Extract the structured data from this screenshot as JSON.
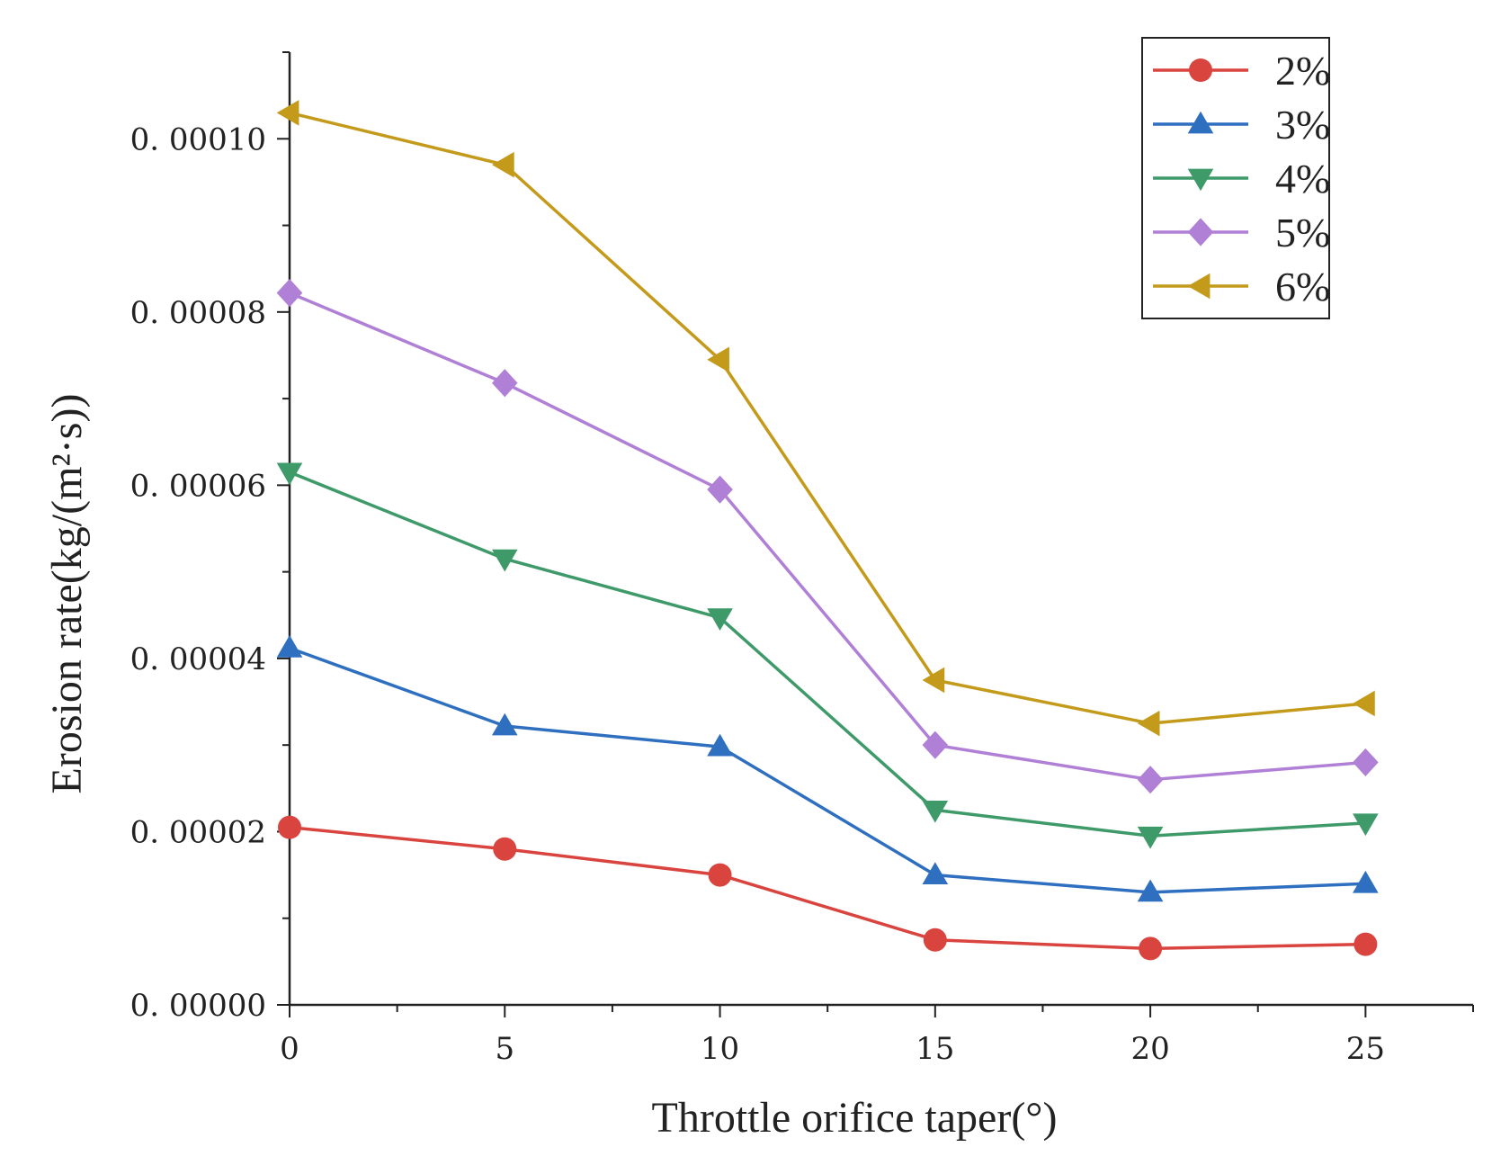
{
  "chart_data": {
    "type": "line",
    "title": "",
    "xlabel": "Throttle orifice taper(°)",
    "ylabel": "Erosion rate(kg/(m²·s))",
    "x": [
      0,
      5,
      10,
      15,
      20,
      25
    ],
    "xlim": [
      0,
      27.5
    ],
    "ylim": [
      0,
      0.00011
    ],
    "xticks": [
      0,
      5,
      10,
      15,
      20,
      25
    ],
    "xtick_labels": [
      "0",
      "5",
      "10",
      "15",
      "20",
      "25"
    ],
    "yticks": [
      0,
      2e-05,
      4e-05,
      6e-05,
      8e-05,
      0.0001
    ],
    "ytick_labels": [
      "0. 00000",
      "0. 00002",
      "0. 00004",
      "0. 00006",
      "0. 00008",
      "0. 00010"
    ],
    "grid": false,
    "legend_position": "top-right",
    "series": [
      {
        "name": "2%",
        "color": "#d9443f",
        "marker": "circle",
        "values": [
          2.05e-05,
          1.8e-05,
          1.5e-05,
          7.5e-06,
          6.5e-06,
          7e-06
        ]
      },
      {
        "name": "3%",
        "color": "#2f6fc0",
        "marker": "triangle-up",
        "values": [
          4.12e-05,
          3.22e-05,
          2.98e-05,
          1.5e-05,
          1.3e-05,
          1.4e-05
        ]
      },
      {
        "name": "4%",
        "color": "#3f9a6a",
        "marker": "triangle-down",
        "values": [
          6.15e-05,
          5.15e-05,
          4.47e-05,
          2.25e-05,
          1.95e-05,
          2.1e-05
        ]
      },
      {
        "name": "5%",
        "color": "#b07fd6",
        "marker": "diamond",
        "values": [
          8.22e-05,
          7.18e-05,
          5.95e-05,
          3e-05,
          2.6e-05,
          2.8e-05
        ]
      },
      {
        "name": "6%",
        "color": "#c49a1a",
        "marker": "triangle-left",
        "values": [
          0.000103,
          9.7e-05,
          7.45e-05,
          3.75e-05,
          3.25e-05,
          3.48e-05
        ]
      }
    ]
  }
}
